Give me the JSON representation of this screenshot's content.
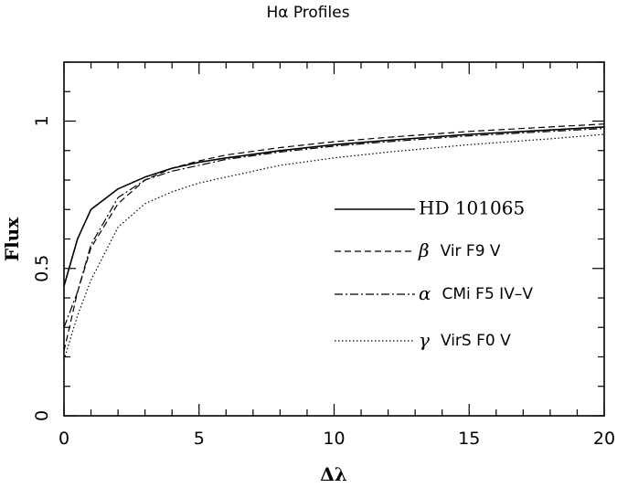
{
  "chart_data": {
    "type": "line",
    "title": "Hα Profiles",
    "xlabel": "Δλ",
    "ylabel": "Flux",
    "xlim": [
      0,
      20
    ],
    "ylim": [
      0,
      1.2
    ],
    "xticks": [
      0,
      5,
      10,
      15,
      20
    ],
    "yticks": [
      0,
      0.5,
      1
    ],
    "ytick_labels": [
      "0",
      "0.5",
      "1"
    ],
    "grid": false,
    "legend_position": "center-right",
    "series": [
      {
        "name": "HD 101065",
        "style": "solid",
        "x": [
          0,
          0.5,
          1,
          2,
          3,
          4,
          5,
          6,
          8,
          10,
          12,
          15,
          18,
          20
        ],
        "y": [
          0.44,
          0.6,
          0.7,
          0.77,
          0.81,
          0.84,
          0.86,
          0.875,
          0.9,
          0.92,
          0.935,
          0.955,
          0.97,
          0.98
        ]
      },
      {
        "name": "β Vir F9 V",
        "style": "dashed",
        "x": [
          0,
          0.5,
          1,
          2,
          3,
          4,
          5,
          6,
          8,
          10,
          12,
          15,
          18,
          20
        ],
        "y": [
          0.22,
          0.42,
          0.57,
          0.72,
          0.8,
          0.84,
          0.865,
          0.885,
          0.91,
          0.93,
          0.945,
          0.965,
          0.98,
          0.99
        ]
      },
      {
        "name": "α CMi F5 IV–V",
        "style": "dashdot",
        "x": [
          0,
          0.5,
          1,
          2,
          3,
          4,
          5,
          6,
          8,
          10,
          12,
          15,
          18,
          20
        ],
        "y": [
          0.3,
          0.42,
          0.58,
          0.74,
          0.8,
          0.83,
          0.85,
          0.87,
          0.895,
          0.915,
          0.93,
          0.95,
          0.965,
          0.975
        ]
      },
      {
        "name": "γ VirS F0 V",
        "style": "dotted",
        "x": [
          0,
          0.5,
          1,
          2,
          3,
          4,
          5,
          6,
          8,
          10,
          12,
          15,
          18,
          20
        ],
        "y": [
          0.19,
          0.34,
          0.46,
          0.64,
          0.72,
          0.76,
          0.79,
          0.81,
          0.85,
          0.875,
          0.895,
          0.92,
          0.94,
          0.955
        ]
      }
    ],
    "legend": {
      "hd_name": "HD 101065",
      "beta_symbol": "β",
      "beta_text": "Vir F9 V",
      "alpha_symbol": "α",
      "alpha_text": "CMi F5 IV–V",
      "gamma_symbol": "γ",
      "gamma_text": "VirS F0 V"
    }
  }
}
